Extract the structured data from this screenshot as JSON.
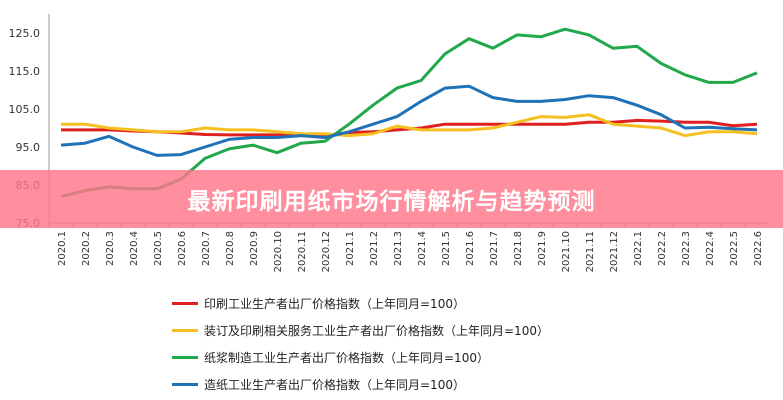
{
  "title": "最新印刷用纸市场行情解析与趋势预测",
  "chart_data": {
    "type": "line",
    "ylim": [
      75,
      125
    ],
    "yticks": [
      "125.0",
      "115.0",
      "105.0",
      "95.0",
      "85.0",
      "75.0"
    ],
    "ytick_values": [
      125,
      115,
      105,
      95,
      85,
      75
    ],
    "grid": false,
    "legend_placement": "bottom",
    "categories": [
      "2020.1",
      "2020.2",
      "2020.3",
      "2020.4",
      "2020.5",
      "2020.6",
      "2020.7",
      "2020.8",
      "2020.9",
      "2020.10",
      "2020.11",
      "2020.12",
      "2021.1",
      "2021.2",
      "2021.3",
      "2021.4",
      "2021.5",
      "2021.6",
      "2021.7",
      "2021.8",
      "2021.9",
      "2021.10",
      "2021.11",
      "2021.12",
      "2022.1",
      "2022.2",
      "2022.3",
      "2022.4",
      "2022.5",
      "2022.6"
    ],
    "series": [
      {
        "name": "印刷工业生产者出厂价格指数（上年同月=100）",
        "color": "#e02020",
        "values": [
          99.5,
          99.5,
          99.5,
          99.2,
          99,
          98.7,
          98.3,
          98.2,
          98.2,
          98.2,
          98,
          98,
          98.8,
          99,
          99.5,
          100,
          101,
          101,
          101,
          101,
          101,
          101,
          101.5,
          101.5,
          102,
          101.8,
          101.5,
          101.5,
          100.6,
          101
        ]
      },
      {
        "name": "装订及印刷相关服务工业生产者出厂价格指数（上年同月=100）",
        "color": "#f5c020",
        "values": [
          101,
          101,
          100,
          99.5,
          99,
          99,
          100,
          99.5,
          99.5,
          99,
          98.5,
          98.5,
          98,
          98.5,
          100.5,
          99.5,
          99.5,
          99.5,
          100,
          101.5,
          103,
          102.8,
          103.5,
          101,
          100.5,
          100,
          98,
          99,
          99,
          98.5
        ]
      },
      {
        "name": "纸浆制造工业生产者出厂价格指数（上年同月=100）",
        "color": "#20a84a",
        "values": [
          82,
          83.5,
          84.5,
          84,
          84,
          86.5,
          92,
          94.5,
          95.5,
          93.5,
          96,
          96.5,
          101,
          106,
          110.5,
          112.5,
          119.5,
          123.5,
          121,
          124.5,
          124,
          126,
          124.5,
          121,
          121.5,
          117,
          114,
          112,
          112,
          114.5
        ]
      },
      {
        "name": "造纸工业生产者出厂价格指数（上年同月=100）",
        "color": "#1f72b8",
        "values": [
          95.5,
          96,
          97.8,
          95,
          92.8,
          93,
          95,
          97,
          97.5,
          97.5,
          98,
          97.5,
          99,
          101,
          103,
          107,
          110.5,
          111,
          108,
          107,
          107,
          107.5,
          108.5,
          108,
          106,
          103.5,
          100,
          100.2,
          99.8,
          99.5
        ]
      }
    ]
  }
}
